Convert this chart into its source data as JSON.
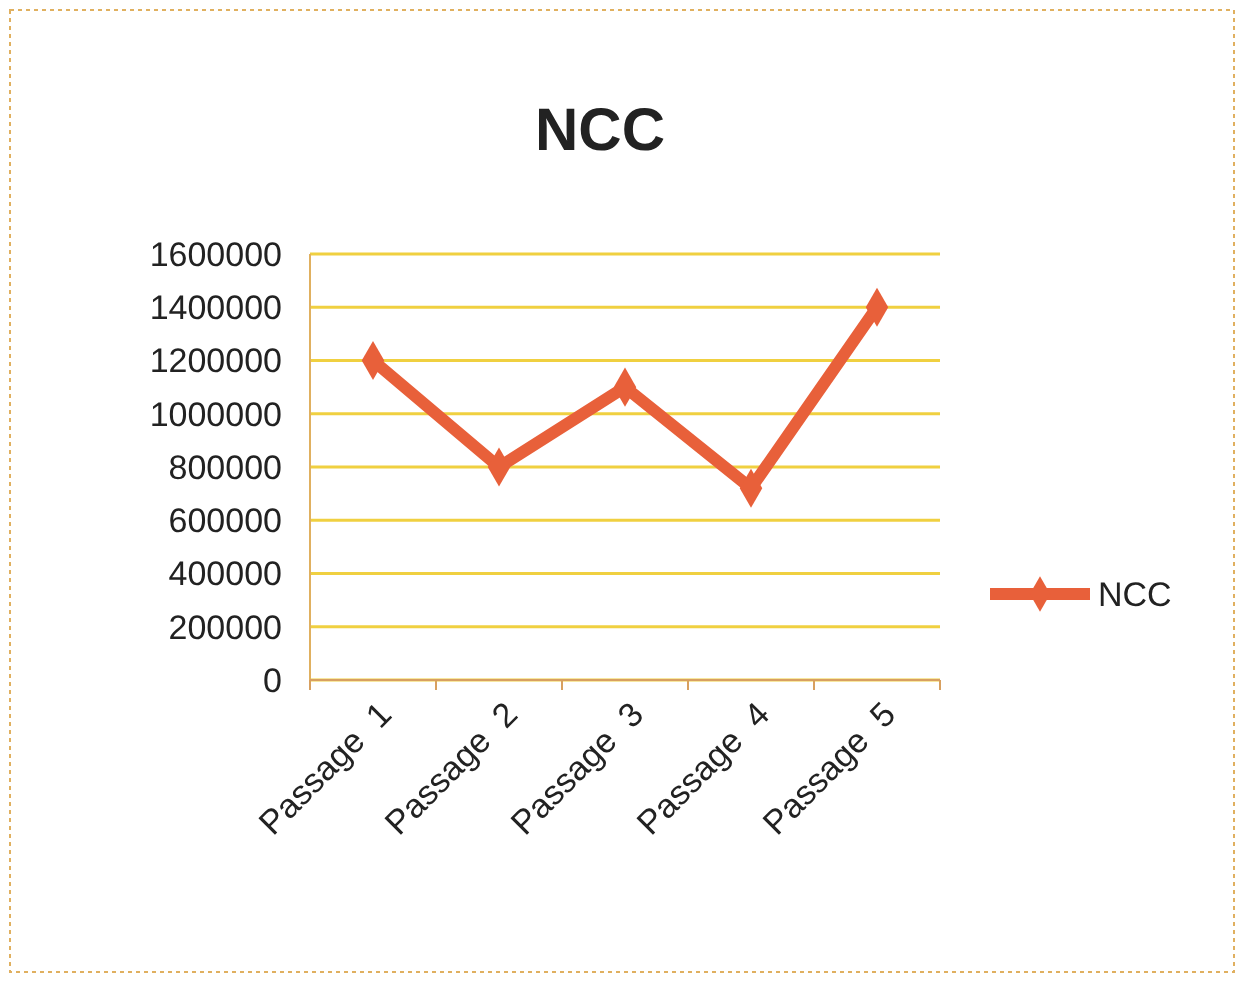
{
  "chart_data": {
    "type": "line",
    "title": "NCC",
    "categories": [
      "Passage  1",
      "Passage  2",
      "Passage  3",
      "Passage  4",
      "Passage  5"
    ],
    "series": [
      {
        "name": "NCC",
        "color": "#e8603a",
        "values": [
          1200000,
          800000,
          1100000,
          720000,
          1400000
        ]
      }
    ],
    "ylim": [
      0,
      1600000
    ],
    "yticks": [
      0,
      200000,
      400000,
      600000,
      800000,
      1000000,
      1200000,
      1400000,
      1600000
    ],
    "grid": "y",
    "legend": "right",
    "marker": "diamond",
    "line_style": "solid"
  }
}
